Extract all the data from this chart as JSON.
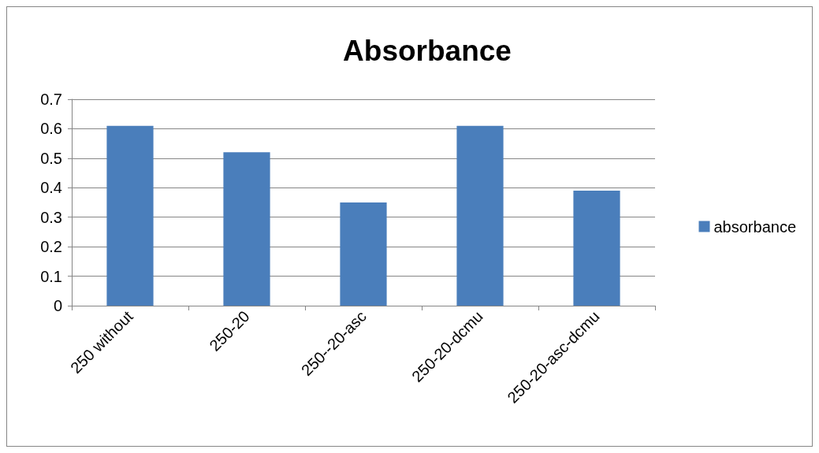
{
  "chart_data": {
    "type": "bar",
    "title": "Absorbance",
    "categories": [
      "250 without",
      "250-20",
      "250--20-asc",
      "250-20-dcmu",
      "250-20-asc-dcmu"
    ],
    "series": [
      {
        "name": "absorbance",
        "color": "#4a7ebb",
        "values": [
          0.61,
          0.52,
          0.35,
          0.61,
          0.39
        ]
      }
    ],
    "ylim": [
      0,
      0.7
    ],
    "yticks": [
      0,
      0.1,
      0.2,
      0.3,
      0.4,
      0.5,
      0.6,
      0.7
    ],
    "grid": "y",
    "legend": "right"
  }
}
